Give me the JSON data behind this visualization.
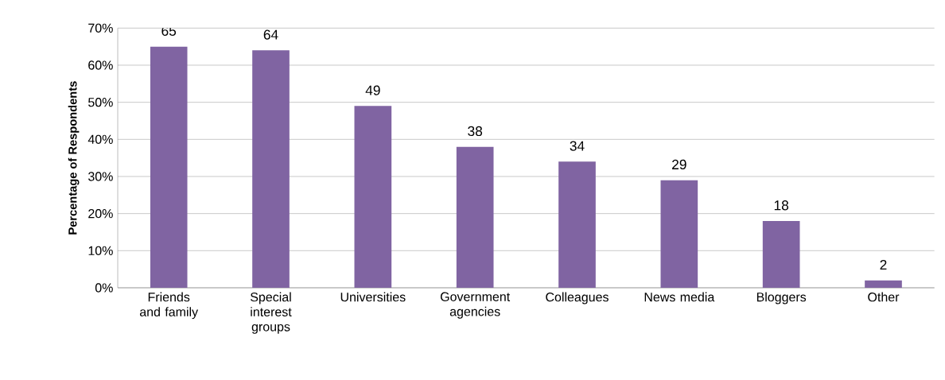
{
  "chart_data": {
    "type": "bar",
    "ylabel": "Percentage of Respondents",
    "categories": [
      "Friends and family",
      "Special interest groups",
      "Universities",
      "Government agencies",
      "Colleagues",
      "News media",
      "Bloggers",
      "Other"
    ],
    "values": [
      65,
      64,
      49,
      38,
      34,
      29,
      18,
      2
    ],
    "color": "#8064a2",
    "data_labels": true,
    "grid": "y",
    "ylim": [
      0,
      70
    ],
    "yticks": [
      {
        "value": 0,
        "label": "0%"
      },
      {
        "value": 10,
        "label": "10%"
      },
      {
        "value": 20,
        "label": "20%"
      },
      {
        "value": 30,
        "label": "30%"
      },
      {
        "value": 40,
        "label": "40%"
      },
      {
        "value": 50,
        "label": "50%"
      },
      {
        "value": 60,
        "label": "60%"
      },
      {
        "value": 70,
        "label": "70%"
      }
    ]
  }
}
